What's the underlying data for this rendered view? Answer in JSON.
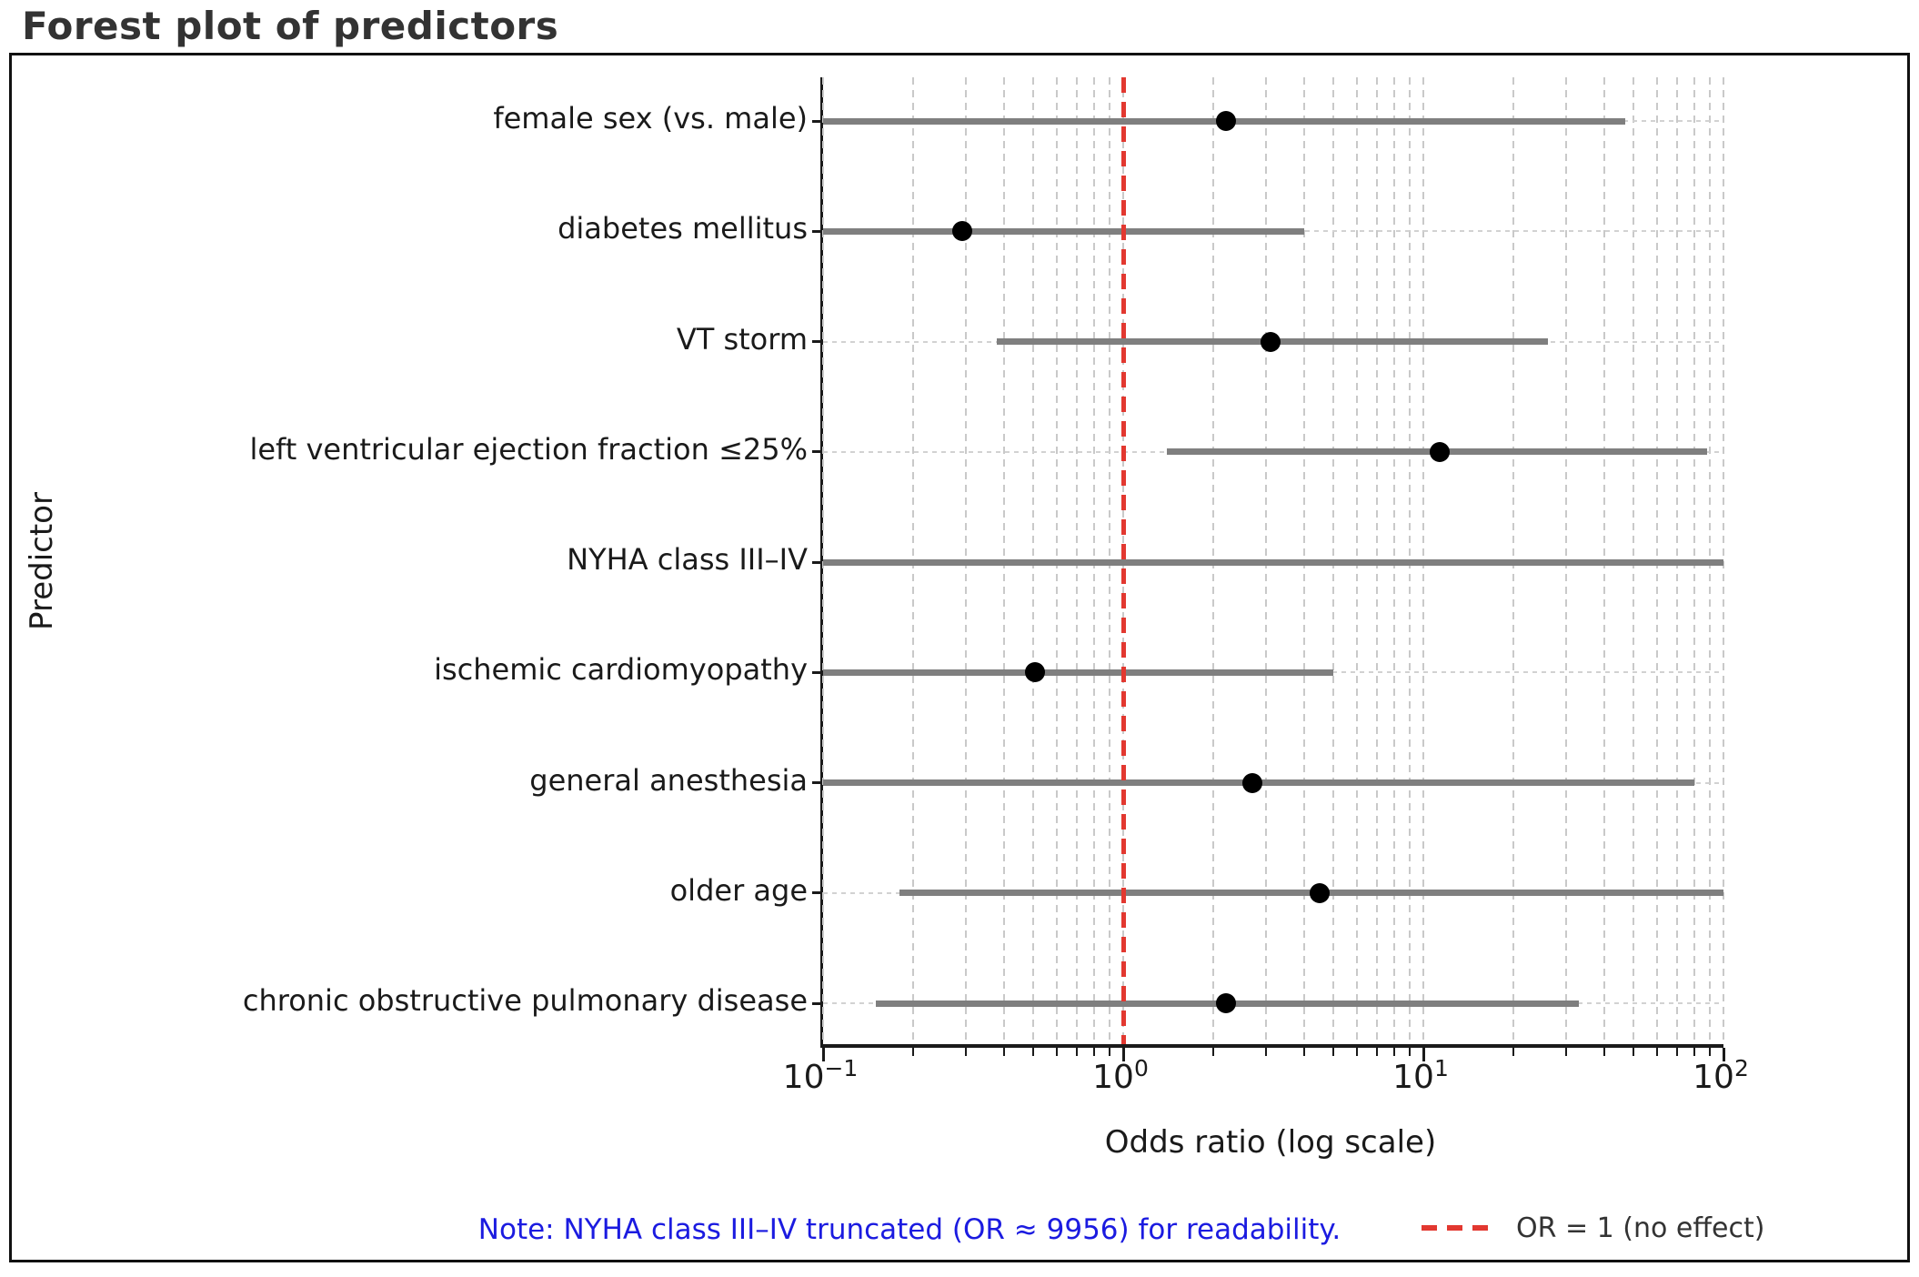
{
  "title": "Forest plot of predictors",
  "axes": {
    "x_label": "Odds ratio (log scale)",
    "y_label": "Predictor",
    "x_scale": "log10",
    "x_tick_labels": [
      {
        "base": "10",
        "exp": "−1",
        "value": 0.1
      },
      {
        "base": "10",
        "exp": "0",
        "value": 1
      },
      {
        "base": "10",
        "exp": "1",
        "value": 10
      },
      {
        "base": "10",
        "exp": "2",
        "value": 100
      }
    ]
  },
  "chart_data": {
    "type": "scatter",
    "subtype": "forest-plot",
    "title": "Forest plot of predictors",
    "xlabel": "Odds ratio (log scale)",
    "ylabel": "Predictor",
    "x_scale": "log",
    "xlim": [
      0.1,
      100
    ],
    "grid": true,
    "major_gridlines": [
      0.1,
      1,
      10,
      100
    ],
    "minor_gridlines": [
      0.2,
      0.3,
      0.4,
      0.5,
      0.6,
      0.7,
      0.8,
      0.9,
      2,
      3,
      4,
      5,
      6,
      7,
      8,
      9,
      20,
      30,
      40,
      50,
      60,
      70,
      80,
      90
    ],
    "reference_line": {
      "value": 1,
      "style": "dashed",
      "color": "#e23830",
      "label": "OR = 1 (no effect)"
    },
    "marker_color": "#000000",
    "ci_color": "#7f7f7f",
    "rows": [
      {
        "label": "female sex (vs. male)",
        "or": 2.2,
        "ci_low": 0.1,
        "ci_high": 47,
        "dot": true
      },
      {
        "label": "diabetes mellitus",
        "or": 0.29,
        "ci_low": 0.1,
        "ci_high": 4.0,
        "dot": true
      },
      {
        "label": "VT storm",
        "or": 3.1,
        "ci_low": 0.38,
        "ci_high": 26,
        "dot": true
      },
      {
        "label": "left ventricular ejection fraction ≤25%",
        "or": 11.3,
        "ci_low": 1.4,
        "ci_high": 88,
        "dot": true
      },
      {
        "label": "NYHA class III–IV",
        "or": 9956,
        "ci_low": 0.1,
        "ci_high": 100,
        "dot": false,
        "truncated": true
      },
      {
        "label": "ischemic cardiomyopathy",
        "or": 0.51,
        "ci_low": 0.1,
        "ci_high": 5.0,
        "dot": true
      },
      {
        "label": "general anesthesia",
        "or": 2.7,
        "ci_low": 0.1,
        "ci_high": 80,
        "dot": true
      },
      {
        "label": "older age",
        "or": 4.5,
        "ci_low": 0.18,
        "ci_high": 100,
        "dot": true
      },
      {
        "label": "chronic obstructive pulmonary disease",
        "or": 2.2,
        "ci_low": 0.15,
        "ci_high": 33,
        "dot": true
      }
    ]
  },
  "note": {
    "text": "Note: NYHA class III–IV truncated (OR ≈ 9956) for readability."
  },
  "legend": {
    "label": "OR = 1 (no effect)"
  }
}
